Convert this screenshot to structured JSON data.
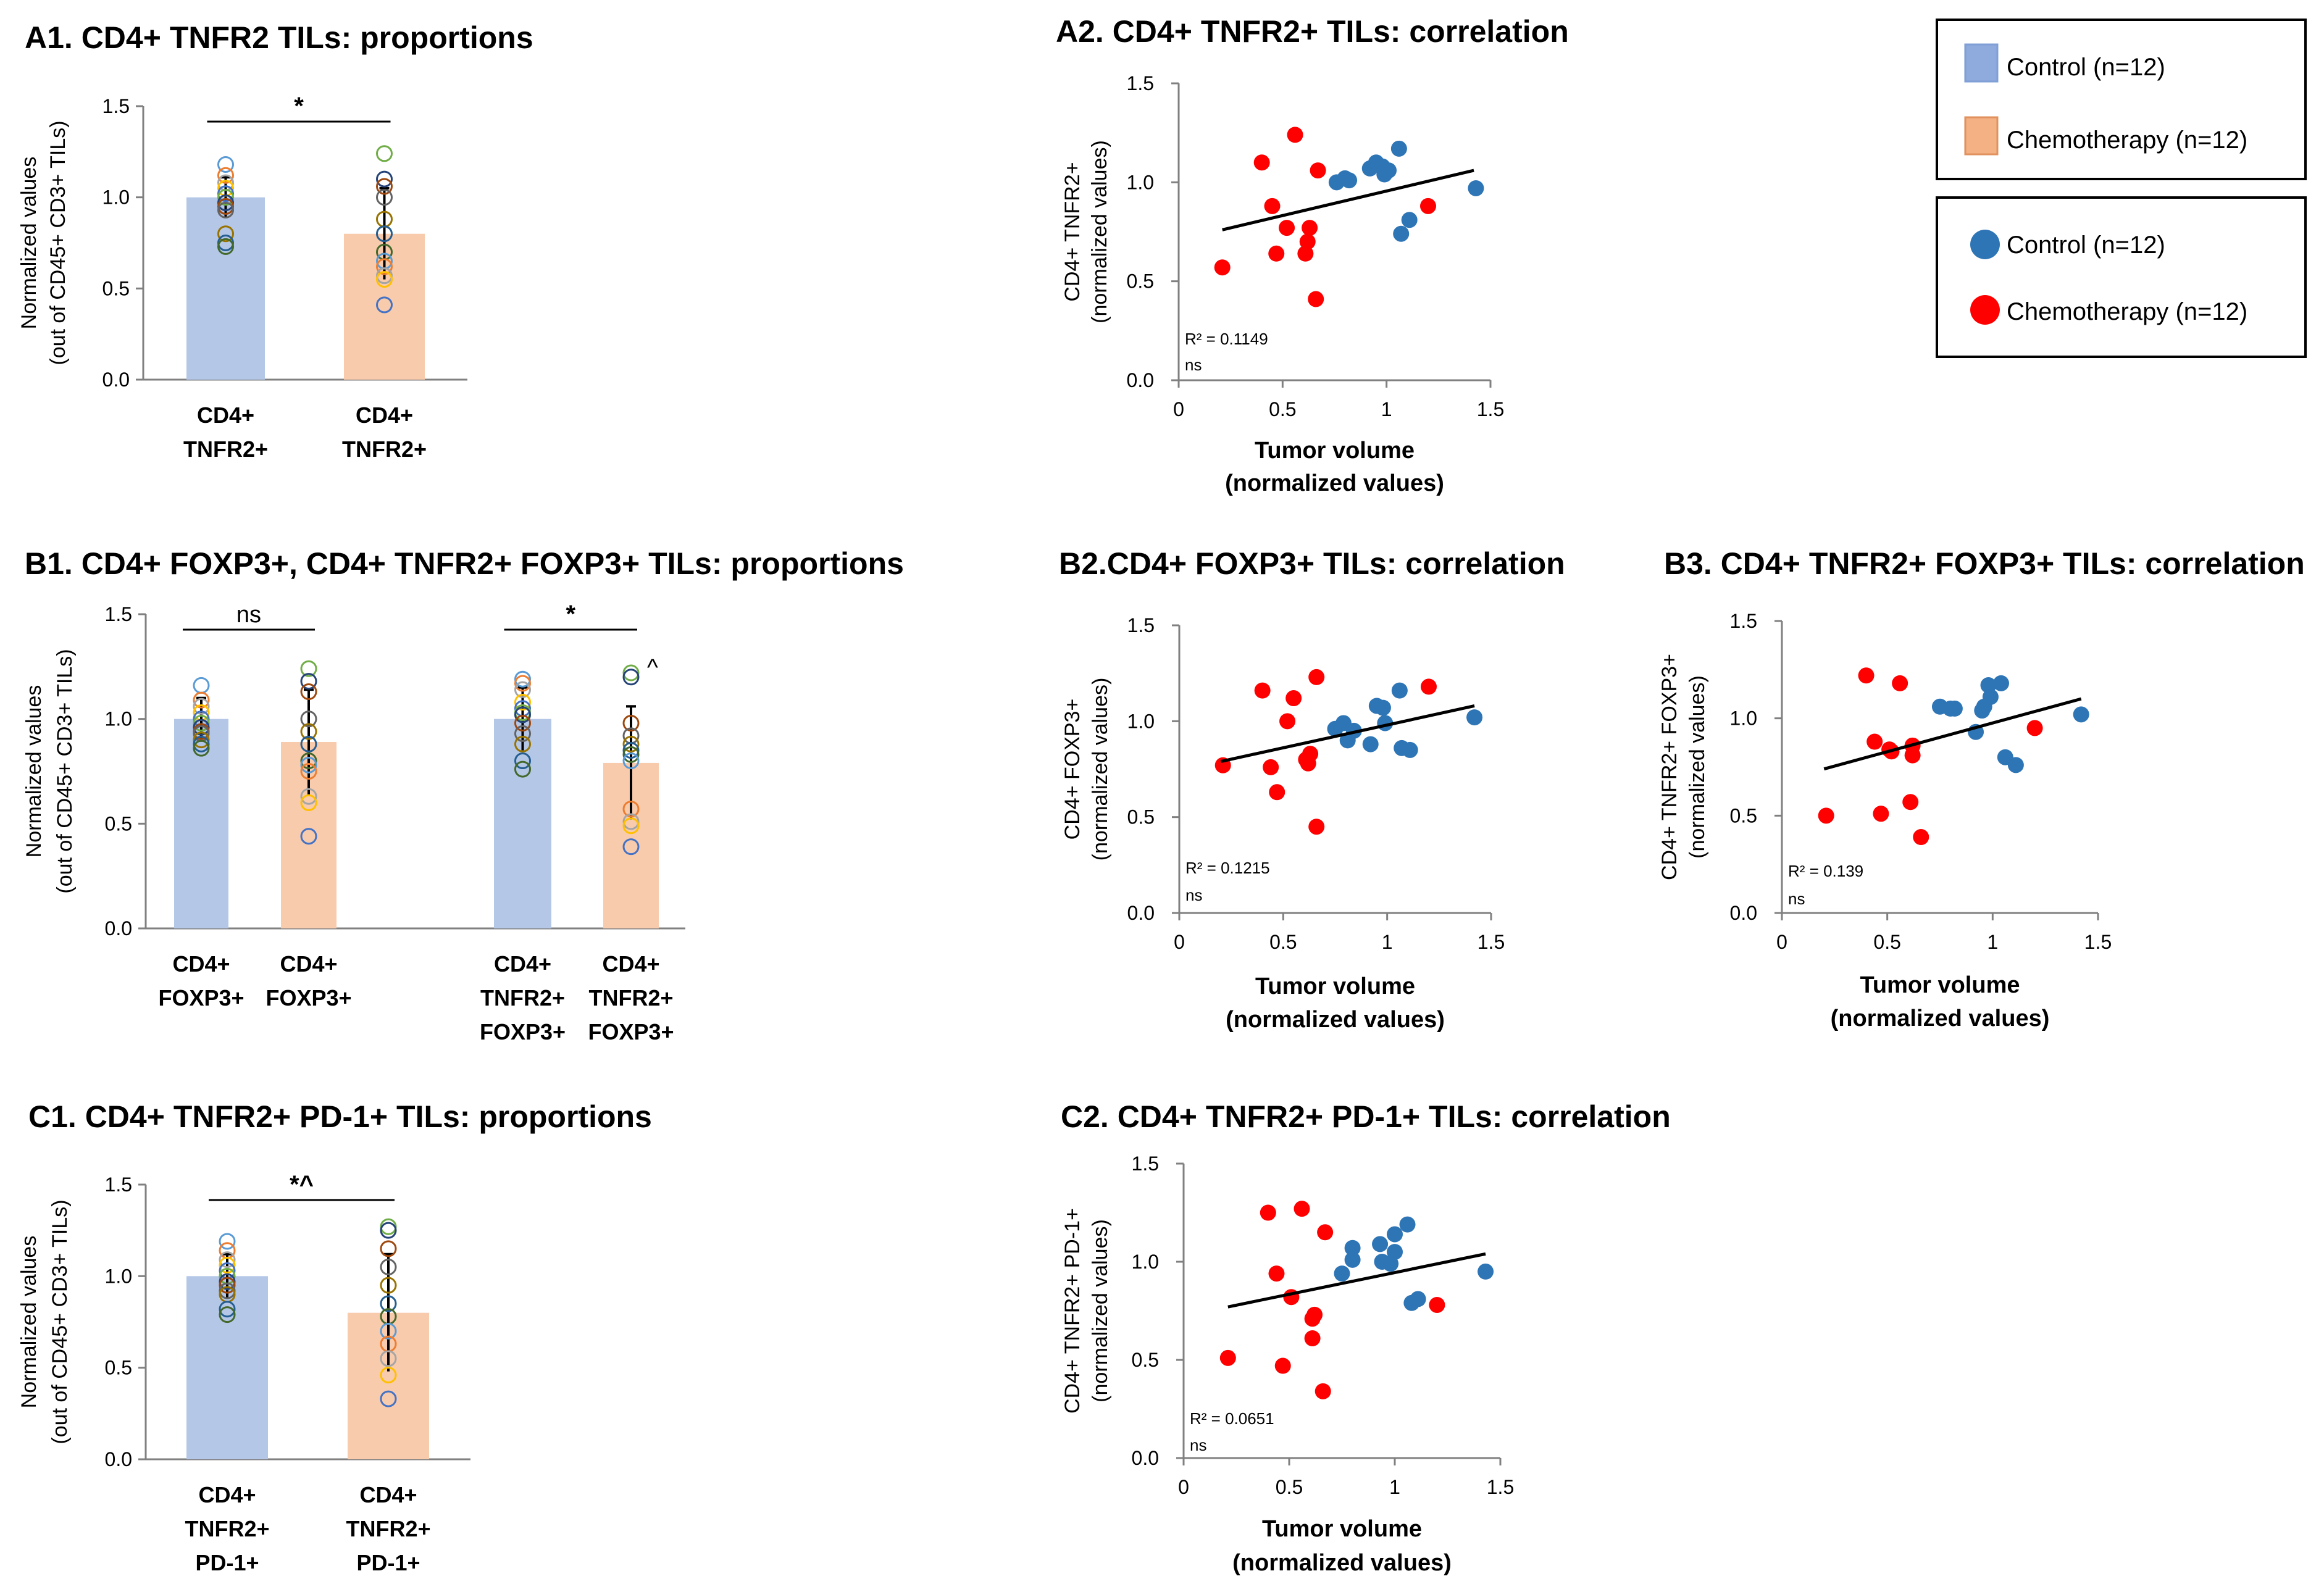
{
  "colors": {
    "control_bar": "#b4c7e7",
    "chemo_bar": "#f8cbad",
    "control_dot": "#2e75b6",
    "chemo_dot": "#ff0000",
    "control_legend_bar": "#8faadc",
    "chemo_legend_bar": "#f4b183"
  },
  "legend_bar": {
    "control": "Control (n=12)",
    "chemo": "Chemotherapy (n=12)"
  },
  "legend_dot": {
    "control": "Control (n=12)",
    "chemo": "Chemotherapy (n=12)"
  },
  "chart_data": [
    {
      "id": "A1",
      "type": "bar",
      "title": "A1. CD4+ TNFR2 TILs: proportions",
      "ylabel": [
        "Normalized values",
        "(out of CD45+ CD3+ TILs)"
      ],
      "ylim": [
        0,
        1.5
      ],
      "yticks": [
        "0.0",
        "0.5",
        "1.0",
        "1.5"
      ],
      "groups": [
        {
          "bars": [
            {
              "label": [
                "CD4+",
                "TNFR2+"
              ],
              "value": 1.0,
              "series": "Control",
              "error": 0.11,
              "points": [
                1.18,
                1.12,
                1.08,
                1.05,
                1.02,
                1.0,
                0.97,
                0.95,
                0.93,
                0.8,
                0.75,
                0.73
              ]
            },
            {
              "label": [
                "CD4+",
                "TNFR2+"
              ],
              "value": 0.8,
              "series": "Chemotherapy",
              "error": 0.25,
              "points": [
                1.24,
                1.1,
                1.06,
                1.0,
                0.88,
                0.8,
                0.7,
                0.65,
                0.62,
                0.57,
                0.55,
                0.41
              ]
            }
          ],
          "significance": "*"
        }
      ]
    },
    {
      "id": "A2",
      "type": "scatter",
      "title": "A2. CD4+ TNFR2+ TILs: correlation",
      "ylabel": [
        "CD4+ TNFR2+",
        "(normalized values)"
      ],
      "xlabel": [
        "Tumor volume",
        "(normalized values)"
      ],
      "xlim": [
        0,
        1.5
      ],
      "ylim": [
        0,
        1.5
      ],
      "xticks": [
        "0",
        "0.5",
        "1",
        "1.5"
      ],
      "yticks": [
        "0.0",
        "0.5",
        "1.0",
        "1.5"
      ],
      "r2": "R² = 0.1149",
      "significance": "ns",
      "trendline": [
        [
          0.21,
          0.76
        ],
        [
          1.42,
          1.06
        ]
      ],
      "control": [
        [
          0.76,
          1.0
        ],
        [
          0.8,
          1.02
        ],
        [
          0.92,
          1.07
        ],
        [
          0.95,
          1.1
        ],
        [
          0.98,
          1.08
        ],
        [
          0.99,
          1.04
        ],
        [
          1.01,
          1.06
        ],
        [
          1.06,
          1.17
        ],
        [
          1.07,
          0.74
        ],
        [
          1.11,
          0.81
        ],
        [
          1.43,
          0.97
        ],
        [
          0.82,
          1.01
        ]
      ],
      "chemo": [
        [
          0.21,
          0.57
        ],
        [
          0.4,
          1.1
        ],
        [
          0.45,
          0.88
        ],
        [
          0.47,
          0.64
        ],
        [
          0.52,
          0.77
        ],
        [
          0.56,
          1.24
        ],
        [
          0.61,
          0.64
        ],
        [
          0.62,
          0.7
        ],
        [
          0.63,
          0.77
        ],
        [
          0.66,
          0.41
        ],
        [
          0.67,
          1.06
        ],
        [
          1.2,
          0.88
        ]
      ]
    },
    {
      "id": "B1",
      "type": "bar",
      "title": "B1. CD4+ FOXP3+, CD4+ TNFR2+ FOXP3+ TILs: proportions",
      "ylabel": [
        "Normalized values",
        "(out of CD45+ CD3+ TILs)"
      ],
      "ylim": [
        0,
        1.5
      ],
      "yticks": [
        "0.0",
        "0.5",
        "1.0",
        "1.5"
      ],
      "groups": [
        {
          "bars": [
            {
              "label": [
                "CD4+",
                "FOXP3+"
              ],
              "value": 1.0,
              "series": "Control",
              "error": 0.1,
              "points": [
                1.16,
                1.09,
                1.06,
                1.03,
                1.0,
                0.98,
                0.96,
                0.94,
                0.93,
                0.9,
                0.88,
                0.86
              ]
            },
            {
              "label": [
                "CD4+",
                "FOXP3+"
              ],
              "value": 0.89,
              "series": "Chemotherapy",
              "error": 0.25,
              "points": [
                1.24,
                1.18,
                1.13,
                1.0,
                0.94,
                0.88,
                0.8,
                0.78,
                0.75,
                0.63,
                0.6,
                0.44
              ]
            }
          ],
          "significance": "ns"
        },
        {
          "bars": [
            {
              "label": [
                "CD4+",
                "TNFR2+",
                "FOXP3+"
              ],
              "value": 1.0,
              "series": "Control",
              "error": 0.15,
              "points": [
                1.19,
                1.17,
                1.14,
                1.08,
                1.05,
                1.03,
                1.02,
                0.98,
                0.93,
                0.88,
                0.8,
                0.76
              ]
            },
            {
              "label": [
                "CD4+",
                "TNFR2+",
                "FOXP3+"
              ],
              "value": 0.79,
              "series": "Chemotherapy",
              "error": 0.27,
              "points": [
                1.22,
                1.2,
                0.98,
                0.92,
                0.88,
                0.85,
                0.83,
                0.8,
                0.57,
                0.51,
                0.49,
                0.39
              ]
            }
          ],
          "significance": "*",
          "note": "^"
        }
      ]
    },
    {
      "id": "B2",
      "type": "scatter",
      "title": "B2.CD4+ FOXP3+ TILs: correlation",
      "ylabel": [
        "CD4+ FOXP3+",
        "(normalized values)"
      ],
      "xlabel": [
        "Tumor volume",
        "(normalized values)"
      ],
      "xlim": [
        0,
        1.5
      ],
      "ylim": [
        0,
        1.5
      ],
      "xticks": [
        "0",
        "0.5",
        "1",
        "1.5"
      ],
      "yticks": [
        "0.0",
        "0.5",
        "1.0",
        "1.5"
      ],
      "r2": "R² = 0.1215",
      "significance": "ns",
      "trendline": [
        [
          0.2,
          0.79
        ],
        [
          1.42,
          1.08
        ]
      ],
      "control": [
        [
          0.75,
          0.96
        ],
        [
          0.79,
          0.99
        ],
        [
          0.81,
          0.9
        ],
        [
          0.92,
          0.88
        ],
        [
          0.95,
          1.08
        ],
        [
          0.98,
          1.07
        ],
        [
          0.99,
          0.99
        ],
        [
          1.06,
          1.16
        ],
        [
          1.07,
          0.86
        ],
        [
          1.11,
          0.85
        ],
        [
          1.42,
          1.02
        ],
        [
          0.84,
          0.95
        ]
      ],
      "chemo": [
        [
          0.21,
          0.77
        ],
        [
          0.4,
          1.16
        ],
        [
          0.44,
          0.76
        ],
        [
          0.47,
          0.63
        ],
        [
          0.52,
          1.0
        ],
        [
          0.55,
          1.12
        ],
        [
          0.62,
          0.78
        ],
        [
          0.63,
          0.83
        ],
        [
          0.66,
          1.23
        ],
        [
          0.66,
          0.45
        ],
        [
          1.2,
          1.18
        ],
        [
          0.61,
          0.8
        ]
      ]
    },
    {
      "id": "B3",
      "type": "scatter",
      "title": "B3. CD4+ TNFR2+ FOXP3+ TILs: correlation",
      "ylabel": [
        "CD4+ TNFR2+ FOXP3+",
        "(normalized values)"
      ],
      "xlabel": [
        "Tumor volume",
        "(normalized values)"
      ],
      "xlim": [
        0,
        1.5
      ],
      "ylim": [
        0,
        1.5
      ],
      "xticks": [
        "0",
        "0.5",
        "1",
        "1.5"
      ],
      "yticks": [
        "0.0",
        "0.5",
        "1.0",
        "1.5"
      ],
      "r2": "R² = 0.139",
      "significance": "ns",
      "trendline": [
        [
          0.2,
          0.74
        ],
        [
          1.42,
          1.1
        ]
      ],
      "control": [
        [
          0.75,
          1.06
        ],
        [
          0.8,
          1.05
        ],
        [
          0.92,
          0.93
        ],
        [
          0.95,
          1.04
        ],
        [
          0.98,
          1.17
        ],
        [
          0.99,
          1.11
        ],
        [
          1.04,
          1.18
        ],
        [
          1.06,
          0.8
        ],
        [
          1.11,
          0.76
        ],
        [
          1.42,
          1.02
        ],
        [
          0.96,
          1.06
        ],
        [
          0.82,
          1.05
        ]
      ],
      "chemo": [
        [
          0.21,
          0.5
        ],
        [
          0.4,
          1.22
        ],
        [
          0.44,
          0.88
        ],
        [
          0.47,
          0.51
        ],
        [
          0.51,
          0.84
        ],
        [
          0.56,
          1.18
        ],
        [
          0.62,
          0.86
        ],
        [
          0.62,
          0.81
        ],
        [
          0.61,
          0.57
        ],
        [
          0.66,
          0.39
        ],
        [
          1.2,
          0.95
        ],
        [
          0.52,
          0.83
        ]
      ]
    },
    {
      "id": "C1",
      "type": "bar",
      "title": "C1. CD4+ TNFR2+ PD-1+ TILs: proportions",
      "ylabel": [
        "Normalized values",
        "(out of CD45+ CD3+ TILs)"
      ],
      "ylim": [
        0,
        1.5
      ],
      "yticks": [
        "0.0",
        "0.5",
        "1.0",
        "1.5"
      ],
      "groups": [
        {
          "bars": [
            {
              "label": [
                "CD4+",
                "TNFR2+",
                "PD-1+"
              ],
              "value": 1.0,
              "series": "Control",
              "error": 0.12,
              "points": [
                1.19,
                1.14,
                1.09,
                1.06,
                1.03,
                1.0,
                0.97,
                0.95,
                0.92,
                0.9,
                0.82,
                0.79
              ]
            },
            {
              "label": [
                "CD4+",
                "TNFR2+",
                "PD-1+"
              ],
              "value": 0.8,
              "series": "Chemotherapy",
              "error": 0.32,
              "points": [
                1.27,
                1.25,
                1.15,
                1.05,
                0.95,
                0.85,
                0.78,
                0.7,
                0.63,
                0.55,
                0.46,
                0.33
              ]
            }
          ],
          "significance": "*^"
        }
      ]
    },
    {
      "id": "C2",
      "type": "scatter",
      "title": "C2. CD4+ TNFR2+ PD-1+ TILs: correlation",
      "ylabel": [
        "CD4+ TNFR2+ PD-1+",
        "(normalized values)"
      ],
      "xlabel": [
        "Tumor volume",
        "(normalized values)"
      ],
      "xlim": [
        0,
        1.5
      ],
      "ylim": [
        0,
        1.5
      ],
      "xticks": [
        "0",
        "0.5",
        "1",
        "1.5"
      ],
      "yticks": [
        "0.0",
        "0.5",
        "1.0",
        "1.5"
      ],
      "r2": "R² = 0.0651",
      "significance": "ns",
      "trendline": [
        [
          0.21,
          0.77
        ],
        [
          1.43,
          1.04
        ]
      ],
      "control": [
        [
          0.75,
          0.94
        ],
        [
          0.8,
          1.07
        ],
        [
          0.8,
          1.01
        ],
        [
          0.93,
          1.09
        ],
        [
          0.94,
          1.0
        ],
        [
          0.98,
          0.99
        ],
        [
          1.0,
          1.05
        ],
        [
          1.0,
          1.14
        ],
        [
          1.06,
          1.19
        ],
        [
          1.08,
          0.79
        ],
        [
          1.11,
          0.81
        ],
        [
          1.43,
          0.95
        ]
      ],
      "chemo": [
        [
          0.21,
          0.51
        ],
        [
          0.4,
          1.25
        ],
        [
          0.44,
          0.94
        ],
        [
          0.47,
          0.47
        ],
        [
          0.51,
          0.82
        ],
        [
          0.56,
          1.27
        ],
        [
          0.61,
          0.71
        ],
        [
          0.62,
          0.73
        ],
        [
          0.61,
          0.61
        ],
        [
          0.66,
          0.34
        ],
        [
          0.67,
          1.15
        ],
        [
          1.2,
          0.78
        ]
      ]
    }
  ]
}
